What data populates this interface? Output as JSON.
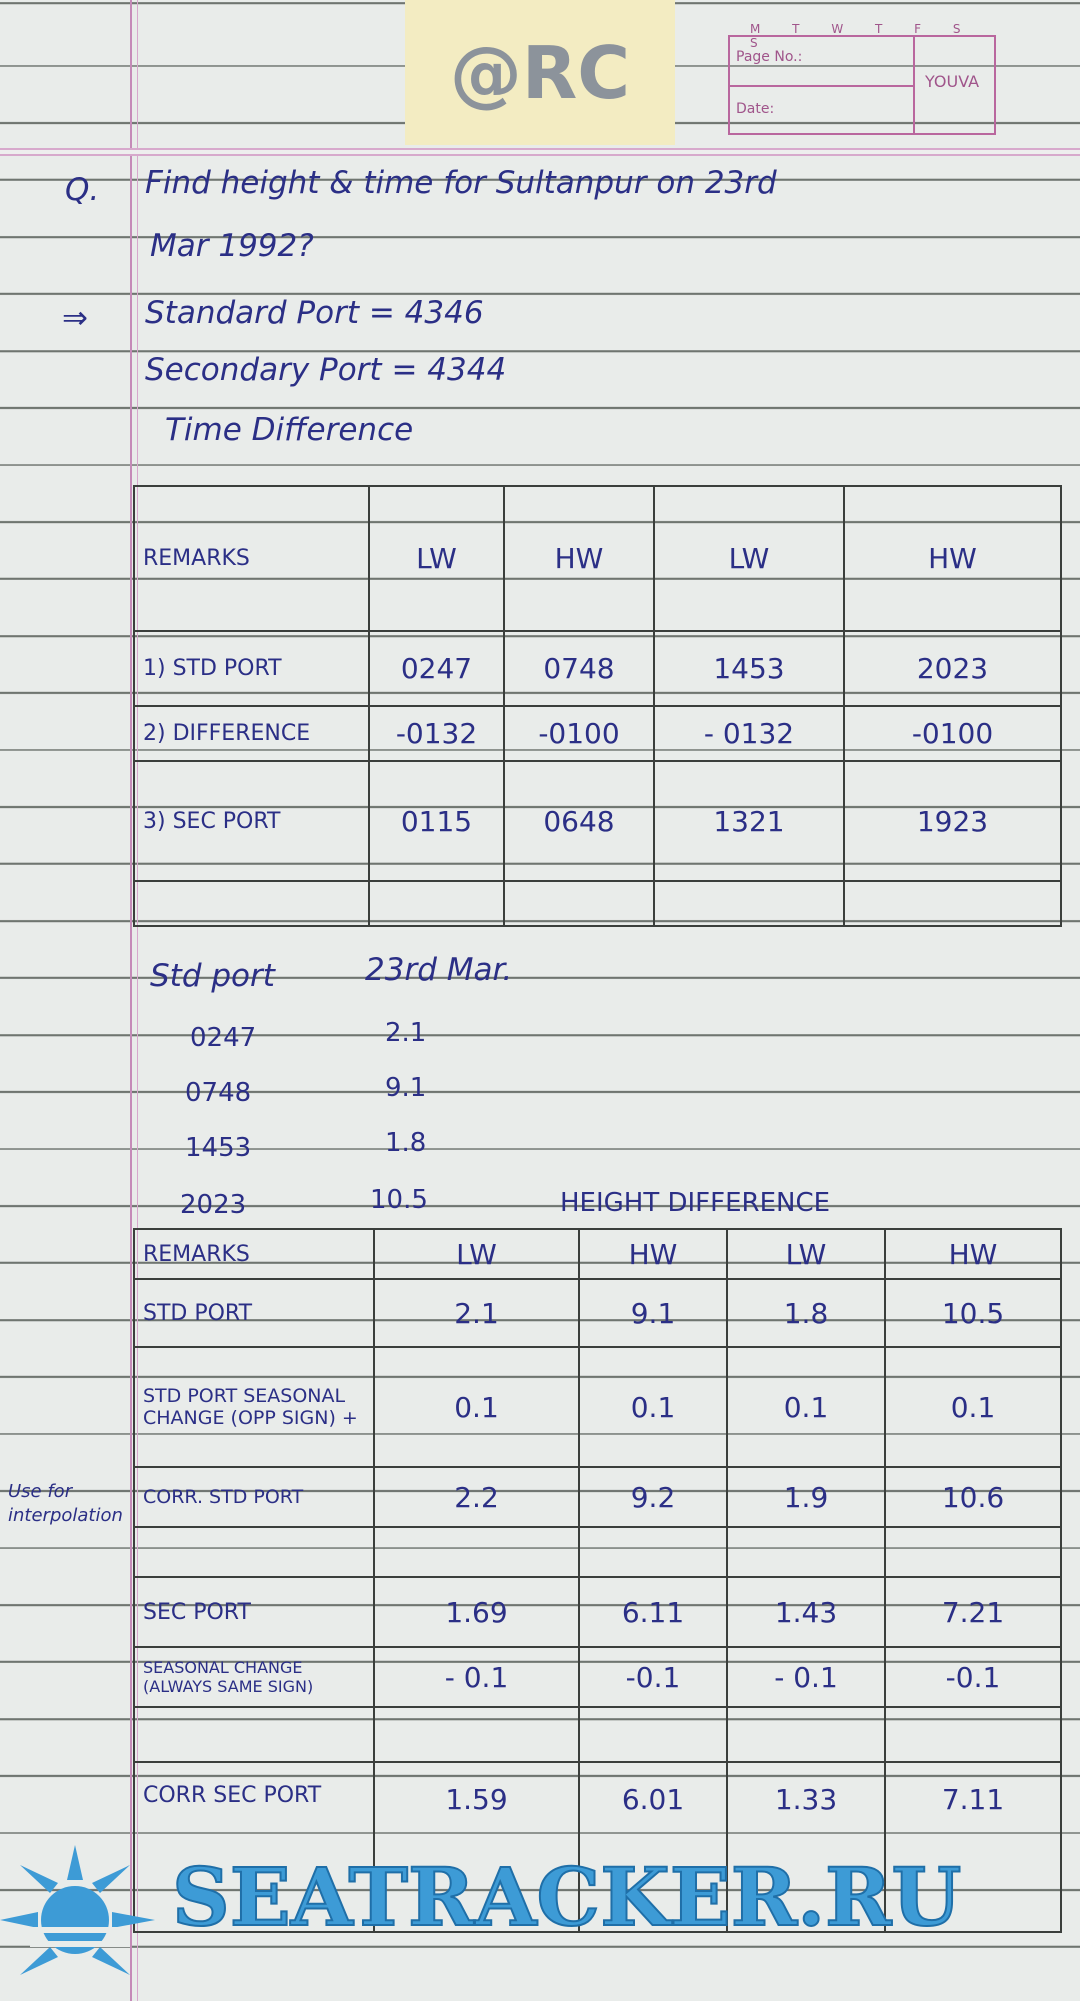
{
  "notebook": {
    "logo_text": "@RC",
    "weekdays": "M T W T F S S",
    "page_no_label": "Page No.:",
    "date_label": "Date:",
    "brand": "YOUVA"
  },
  "question": {
    "marker": "Q.",
    "line1": "Find height & time for Sultanpur on 23rd",
    "line2": "Mar 1992?"
  },
  "answer": {
    "arrow": "⇒",
    "standard_port": "Standard Port = 4346",
    "secondary_port": "Secondary Port = 4344",
    "section_title": "Time Difference"
  },
  "time_table": {
    "headers": [
      "REMARKS",
      "LW",
      "HW",
      "LW",
      "HW"
    ],
    "rows": [
      {
        "label": "1) STD PORT",
        "values": [
          "0247",
          "0748",
          "1453",
          "2023"
        ]
      },
      {
        "label": "2) DIFFERENCE",
        "values": [
          "-0132",
          "-0100",
          "- 0132",
          "-0100"
        ]
      },
      {
        "label": "3) SEC PORT",
        "values": [
          "0115",
          "0648",
          "1321",
          "1923"
        ]
      }
    ]
  },
  "std_port_heights": {
    "header_left": "Std port",
    "header_right": "23rd Mar.",
    "rows": [
      {
        "time": "0247",
        "height": "2.1"
      },
      {
        "time": "0748",
        "height": "9.1"
      },
      {
        "time": "1453",
        "height": "1.8"
      },
      {
        "time": "2023",
        "height": "10.5"
      }
    ]
  },
  "height_table": {
    "title": "HEIGHT DIFFERENCE",
    "headers": [
      "REMARKS",
      "LW",
      "HW",
      "LW",
      "HW"
    ],
    "rows": [
      {
        "label": "STD PORT",
        "values": [
          "2.1",
          "9.1",
          "1.8",
          "10.5"
        ]
      },
      {
        "label": "STD PORT SEASONAL CHANGE (OPP SIGN) +",
        "values": [
          "0.1",
          "0.1",
          "0.1",
          "0.1"
        ]
      },
      {
        "label": "CORR. STD PORT",
        "values": [
          "2.2",
          "9.2",
          "1.9",
          "10.6"
        ]
      },
      {
        "label": "SEC PORT",
        "values": [
          "1.69",
          "6.11",
          "1.43",
          "7.21"
        ]
      },
      {
        "label": "SEASONAL CHANGE (ALWAYS SAME SIGN)",
        "values": [
          "- 0.1",
          "-0.1",
          "- 0.1",
          "-0.1"
        ]
      },
      {
        "label": "CORR SEC PORT",
        "values": [
          "1.59",
          "6.01",
          "1.33",
          "7.11"
        ]
      }
    ]
  },
  "margin_note": "Use for interpolation",
  "watermark": "SEATRACKER.RU"
}
